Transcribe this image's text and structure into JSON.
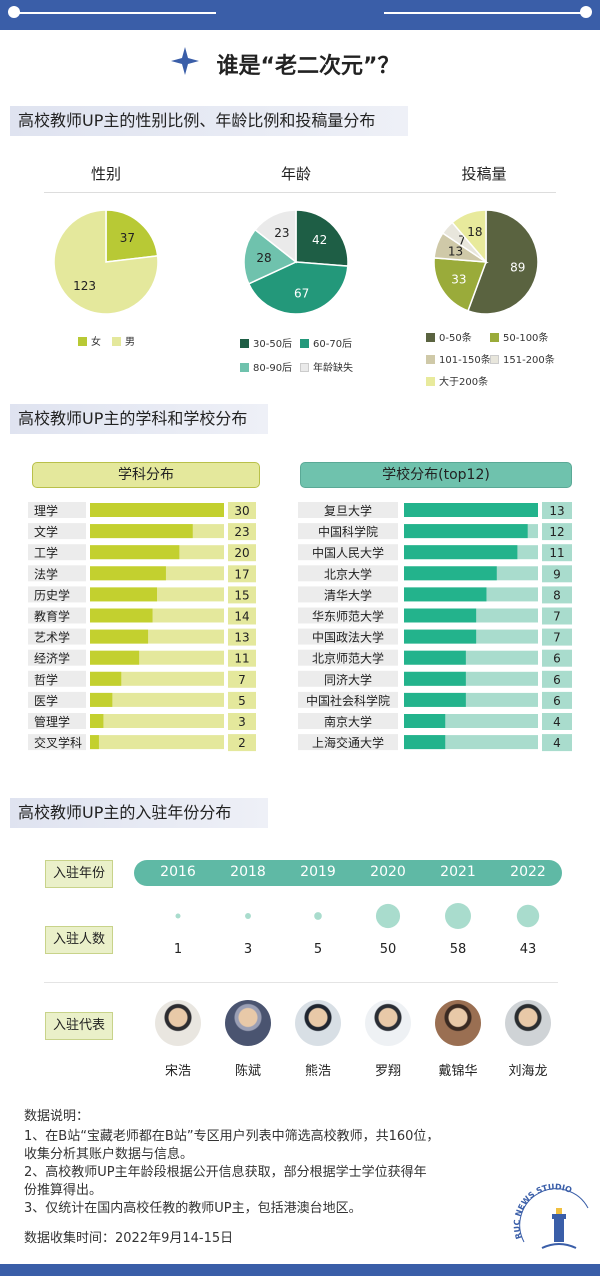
{
  "title": "谁是“老二次元”？",
  "sections": {
    "s1": "高校教师UP主的性别比例、年龄比例和投稿量分布",
    "s2": "高校教师UP主的学科和学校分布",
    "s3": "高校教师UP主的入驻年份分布"
  },
  "colors": {
    "brand": "#3a5ea8",
    "lime": "#c3d02f",
    "lime_light": "#e4e89c",
    "teal": "#23b38c",
    "teal_light": "#a9dccd",
    "year_pill": "#5fb9a5"
  },
  "chart_data": [
    {
      "type": "pie",
      "title": "性别",
      "labels": [
        "女",
        "男"
      ],
      "values": [
        37,
        123
      ],
      "colors": [
        "#b8c935",
        "#e4e89c"
      ]
    },
    {
      "type": "pie",
      "title": "年龄",
      "labels": [
        "30-50后",
        "60-70后",
        "80-90后",
        "年龄缺失"
      ],
      "values": [
        42,
        67,
        28,
        23
      ],
      "colors": [
        "#1e5e45",
        "#23987a",
        "#6fc2ad",
        "#eaeaea"
      ]
    },
    {
      "type": "pie",
      "title": "投稿量",
      "labels": [
        "0-50条",
        "50-100条",
        "101-150条",
        "151-200条",
        "大于200条"
      ],
      "values": [
        89,
        33,
        13,
        7,
        18
      ],
      "colors": [
        "#5a6340",
        "#9aab3a",
        "#cfc9a8",
        "#e8e6dc",
        "#e8ea9c"
      ]
    },
    {
      "type": "bar",
      "title": "学科分布",
      "categories": [
        "理学",
        "文学",
        "工学",
        "法学",
        "历史学",
        "教育学",
        "艺术学",
        "经济学",
        "哲学",
        "医学",
        "管理学",
        "交叉学科"
      ],
      "values": [
        30,
        23,
        20,
        17,
        15,
        14,
        13,
        11,
        7,
        5,
        3,
        2
      ],
      "xlim": [
        0,
        30
      ]
    },
    {
      "type": "bar",
      "title": "学校分布(top12)",
      "categories": [
        "复旦大学",
        "中国科学院",
        "中国人民大学",
        "北京大学",
        "清华大学",
        "华东师范大学",
        "中国政法大学",
        "北京师范大学",
        "同济大学",
        "中国社会科学院",
        "南京大学",
        "上海交通大学"
      ],
      "values": [
        13,
        12,
        11,
        9,
        8,
        7,
        7,
        6,
        6,
        6,
        4,
        4
      ],
      "xlim": [
        0,
        13
      ]
    },
    {
      "type": "scatter",
      "title": "",
      "x": [
        "2016",
        "2018",
        "2019",
        "2020",
        "2021",
        "2022"
      ],
      "values": [
        1,
        3,
        5,
        50,
        58,
        43
      ]
    }
  ],
  "entry": {
    "year_label": "入驻年份",
    "count_label": "入驻人数",
    "rep_label": "入驻代表",
    "representatives": [
      "宋浩",
      "陈斌",
      "熊浩",
      "罗翔",
      "戴锦华",
      "刘海龙"
    ]
  },
  "notes": {
    "head": "数据说明：",
    "n1a": "1、在B站“宝藏老师都在B站”专区用户列表中筛选高校教师，共160位，",
    "n1b": "收集分析其账户数据与信息。",
    "n2a": "2、高校教师UP主年龄段根据公开信息获取，部分根据学士学位获得年",
    "n2b": "份推算得出。",
    "n3": "3、仅统计在国内高校任教的教师UP主，包括港澳台地区。",
    "time": "数据收集时间：2022年9月14-15日"
  },
  "logo_text": "RUC NEWS STUDIO"
}
